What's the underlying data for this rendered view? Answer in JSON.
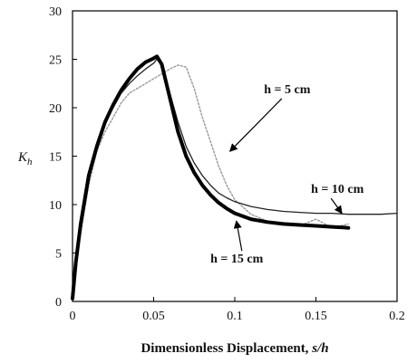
{
  "chart_data": {
    "type": "line",
    "title": "",
    "xlabel": "Dimensionless Displacement, s/h",
    "xlabel_main": "Dimensionless Displacement, ",
    "xlabel_italic": "s/h",
    "ylabel_main": "K",
    "ylabel_sub": "h",
    "xlim": [
      0,
      0.2
    ],
    "ylim": [
      0,
      30
    ],
    "xticks": [
      0,
      0.05,
      0.1,
      0.15,
      0.2
    ],
    "xtick_labels": [
      "0",
      "0.05",
      "0.1",
      "0.15",
      "0.2"
    ],
    "yticks": [
      0,
      5,
      10,
      15,
      20,
      25,
      30
    ],
    "ytick_labels": [
      "0",
      "5",
      "10",
      "15",
      "20",
      "25",
      "30"
    ],
    "grid": false,
    "legend": "none (curves labeled by annotations with arrows)",
    "series": [
      {
        "name": "h = 5 cm",
        "style": "dotted-gray",
        "color": "#9a9a9a",
        "x": [
          0,
          0.004,
          0.01,
          0.015,
          0.02,
          0.025,
          0.03,
          0.035,
          0.04,
          0.045,
          0.05,
          0.055,
          0.06,
          0.065,
          0.07,
          0.075,
          0.08,
          0.085,
          0.09,
          0.095,
          0.1,
          0.11,
          0.12,
          0.13,
          0.14,
          0.15,
          0.16,
          0.17
        ],
        "y": [
          0.3,
          6,
          12,
          15.5,
          17.5,
          19,
          20.5,
          21.5,
          22,
          22.5,
          23,
          23.5,
          24,
          24.4,
          24.2,
          22,
          19,
          16.5,
          14,
          12,
          10.5,
          9,
          8.3,
          8,
          7.8,
          8.5,
          7.6,
          8
        ]
      },
      {
        "name": "h = 10 cm",
        "style": "thin-solid",
        "color": "#222222",
        "x": [
          0,
          0.004,
          0.01,
          0.015,
          0.02,
          0.025,
          0.03,
          0.035,
          0.04,
          0.045,
          0.05,
          0.052,
          0.055,
          0.06,
          0.065,
          0.07,
          0.075,
          0.08,
          0.085,
          0.09,
          0.095,
          0.1,
          0.11,
          0.12,
          0.13,
          0.14,
          0.15,
          0.16,
          0.17,
          0.18,
          0.19,
          0.2
        ],
        "y": [
          0.3,
          7,
          13,
          16,
          18.5,
          20,
          21.5,
          22.5,
          23.3,
          24,
          24.6,
          25,
          24.5,
          21.5,
          18.5,
          16,
          14.3,
          13,
          12,
          11.2,
          10.7,
          10.3,
          9.8,
          9.5,
          9.3,
          9.2,
          9.1,
          9.1,
          9.0,
          9.0,
          9.0,
          9.1
        ]
      },
      {
        "name": "h = 15 cm",
        "style": "thick-solid",
        "color": "#000000",
        "x": [
          0,
          0.002,
          0.005,
          0.01,
          0.015,
          0.02,
          0.025,
          0.03,
          0.035,
          0.04,
          0.045,
          0.05,
          0.052,
          0.055,
          0.06,
          0.065,
          0.07,
          0.075,
          0.08,
          0.085,
          0.09,
          0.095,
          0.1,
          0.11,
          0.12,
          0.13,
          0.14,
          0.15,
          0.16,
          0.17
        ],
        "y": [
          0.3,
          4,
          8,
          13,
          16,
          18.5,
          20.3,
          21.8,
          23,
          24,
          24.7,
          25.1,
          25.3,
          24.5,
          21,
          17.5,
          15,
          13.3,
          12,
          11,
          10.2,
          9.6,
          9.1,
          8.5,
          8.2,
          8.0,
          7.9,
          7.8,
          7.7,
          7.6
        ]
      }
    ],
    "annotations": [
      {
        "text": "h = 5 cm",
        "label_x": 0.118,
        "label_y": 21.5,
        "arrow_to_x": 0.097,
        "arrow_to_y": 15.5
      },
      {
        "text": "h = 10 cm",
        "label_x": 0.147,
        "label_y": 11.2,
        "arrow_to_x": 0.166,
        "arrow_to_y": 9.1
      },
      {
        "text": "h = 15 cm",
        "label_x": 0.085,
        "label_y": 4.0,
        "arrow_to_x": 0.101,
        "arrow_to_y": 8.3
      }
    ]
  }
}
